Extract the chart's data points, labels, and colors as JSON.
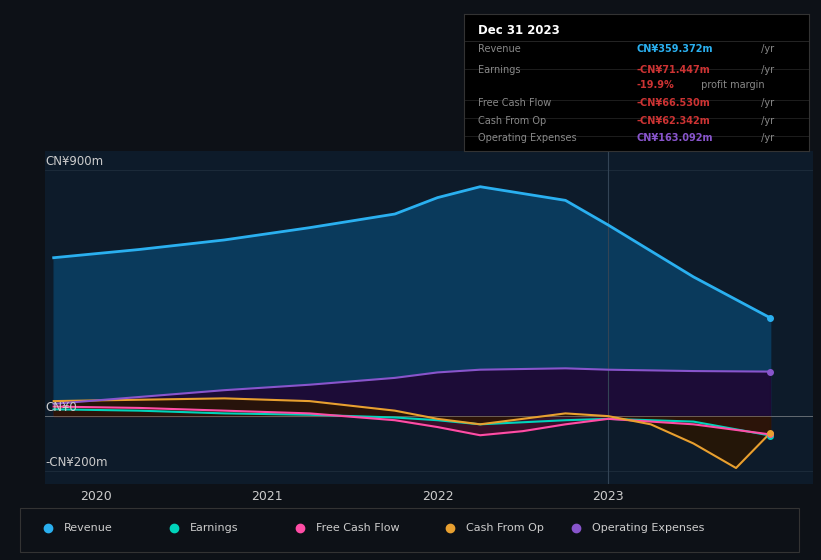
{
  "background_color": "#0d1117",
  "plot_bg_color": "#0d1b2a",
  "ylim": [
    -250,
    970
  ],
  "xlim": [
    2019.7,
    2024.2
  ],
  "xticks": [
    2020,
    2021,
    2022,
    2023
  ],
  "grid_color": "#1e2d3d",
  "series": {
    "Revenue": {
      "color": "#2ab0f0",
      "fill_color": "#0a3a5c",
      "x": [
        2019.75,
        2020.25,
        2020.75,
        2021.25,
        2021.75,
        2022.0,
        2022.25,
        2022.75,
        2023.0,
        2023.5,
        2023.95
      ],
      "y": [
        580,
        610,
        645,
        690,
        740,
        800,
        840,
        790,
        700,
        510,
        360
      ]
    },
    "Earnings": {
      "color": "#00d4bb",
      "fill_color": "#003344",
      "x": [
        2019.75,
        2020.25,
        2020.75,
        2021.25,
        2021.75,
        2022.0,
        2022.25,
        2022.75,
        2023.0,
        2023.5,
        2023.95
      ],
      "y": [
        25,
        20,
        10,
        5,
        -5,
        -15,
        -30,
        -15,
        -10,
        -20,
        -71
      ]
    },
    "FreeCashFlow": {
      "color": "#ff4da6",
      "fill_color": "#4a0a2a",
      "x": [
        2019.75,
        2020.25,
        2020.75,
        2021.25,
        2021.75,
        2022.0,
        2022.25,
        2022.5,
        2022.75,
        2023.0,
        2023.5,
        2023.95
      ],
      "y": [
        35,
        30,
        20,
        10,
        -15,
        -40,
        -70,
        -55,
        -30,
        -10,
        -30,
        -67
      ]
    },
    "CashFromOp": {
      "color": "#e8a030",
      "fill_color": "#2a1500",
      "x": [
        2019.75,
        2020.25,
        2020.75,
        2021.25,
        2021.75,
        2022.0,
        2022.25,
        2022.5,
        2022.75,
        2023.0,
        2023.25,
        2023.5,
        2023.75,
        2023.95
      ],
      "y": [
        55,
        60,
        65,
        55,
        20,
        -10,
        -30,
        -10,
        10,
        0,
        -30,
        -100,
        -190,
        -62
      ]
    },
    "OperatingExpenses": {
      "color": "#8855cc",
      "fill_color": "#1e0a35",
      "x": [
        2019.75,
        2020.25,
        2020.75,
        2021.25,
        2021.75,
        2022.0,
        2022.25,
        2022.75,
        2023.0,
        2023.5,
        2023.95
      ],
      "y": [
        45,
        70,
        95,
        115,
        140,
        160,
        170,
        175,
        170,
        165,
        163
      ]
    }
  },
  "info_box": {
    "title": "Dec 31 2023",
    "rows": [
      {
        "label": "Revenue",
        "value": "CN¥359.372m /yr",
        "value_color": "#2ab0f0"
      },
      {
        "label": "Earnings",
        "value": "-CN¥71.447m /yr",
        "value_color": "#cc3333"
      },
      {
        "label": "",
        "value": "-19.9% profit margin",
        "value_color": "#cc3333",
        "suffix": " profit margin",
        "suffix_color": "#888888"
      },
      {
        "label": "Free Cash Flow",
        "value": "-CN¥66.530m /yr",
        "value_color": "#cc3333"
      },
      {
        "label": "Cash From Op",
        "value": "-CN¥62.342m /yr",
        "value_color": "#cc3333"
      },
      {
        "label": "Operating Expenses",
        "value": "CN¥163.092m /yr",
        "value_color": "#8855cc"
      }
    ]
  },
  "legend": [
    {
      "label": "Revenue",
      "color": "#2ab0f0"
    },
    {
      "label": "Earnings",
      "color": "#00d4bb"
    },
    {
      "label": "Free Cash Flow",
      "color": "#ff4da6"
    },
    {
      "label": "Cash From Op",
      "color": "#e8a030"
    },
    {
      "label": "Operating Expenses",
      "color": "#8855cc"
    }
  ],
  "highlight_x": 2023.0,
  "text_color": "#888888",
  "text_color_bright": "#cccccc",
  "zero_line_color": "#aaaaaa"
}
